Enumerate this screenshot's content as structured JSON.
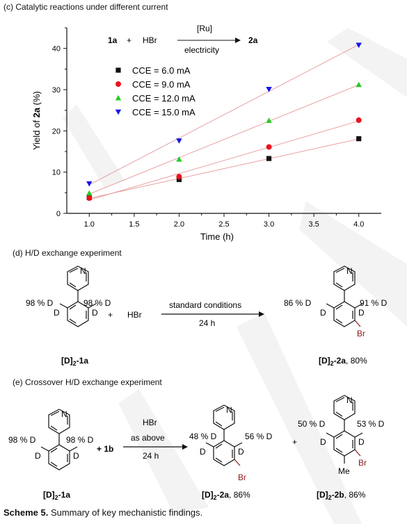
{
  "panels": {
    "c": {
      "title": "(c) Catalytic reactions under different current"
    },
    "d": {
      "title": "(d) H/D exchange experiment",
      "pct_left": "98 % D",
      "pct_right": "98 % D",
      "plus": "+",
      "reagent": "HBr",
      "conditions": "standard conditions",
      "time": "24 h",
      "prod_pct_left": "86 % D",
      "prod_pct_right": "91 % D",
      "label_sm_prefix": "[D]",
      "label_sm_sub": "2",
      "label_sm_suffix": "-1a",
      "label_prod_prefix": "[D]",
      "label_prod_sub": "2",
      "label_prod_suffix": "-2a",
      "label_prod_yield": ", 80%"
    },
    "e": {
      "title": "(e) Crossover H/D exchange experiment",
      "pct_left": "98 % D",
      "pct_right": "98 % D",
      "plus_1b": "+ 1b",
      "reagent": "HBr",
      "conditions": "as above",
      "time": "24 h",
      "p1_pct_left": "48 % D",
      "p1_pct_right": "56 % D",
      "plus": "+",
      "p2_pct_left": "50 % D",
      "p2_pct_right": "53 % D",
      "me": "Me",
      "label_sm_prefix": "[D]",
      "label_sm_sub": "2",
      "label_sm_suffix": "-1a",
      "label_p1_prefix": "[D]",
      "label_p1_sub": "2",
      "label_p1_suffix": "-2a",
      "label_p1_yield": ", 86%",
      "label_p2_prefix": "[D]",
      "label_p2_sub": "2",
      "label_p2_suffix": "-2b",
      "label_p2_yield": ", 86%"
    }
  },
  "atoms": {
    "N": "N",
    "D": "D",
    "Br": "Br"
  },
  "scheme_inset": {
    "reactant": "1a",
    "plus": "+",
    "reagent": "HBr",
    "catalyst": "[Ru]",
    "below": "electricity",
    "product": "2a"
  },
  "caption": {
    "bold": "Scheme 5.",
    "text": " Summary of key mechanistic findings."
  },
  "chart_data": {
    "type": "scatter",
    "title": "",
    "xlabel": "Time (h)",
    "ylabel_prefix": "Yield of ",
    "ylabel_bold": "2a",
    "ylabel_suffix": " (%)",
    "xlim": [
      0.75,
      4.25
    ],
    "ylim": [
      0,
      45
    ],
    "x_ticks": [
      1.0,
      1.5,
      2.0,
      2.5,
      3.0,
      3.5,
      4.0
    ],
    "x_tick_labels": [
      "1.0",
      "1.5",
      "2.0",
      "2.5",
      "3.0",
      "3.5",
      "4.0"
    ],
    "y_ticks": [
      0,
      10,
      20,
      30,
      40
    ],
    "y_tick_labels": [
      "0",
      "10",
      "20",
      "30",
      "40"
    ],
    "legend_position": "top-left",
    "fit_line_color": "#e8a0a0",
    "series": [
      {
        "name": "CCE = 6.0 mA",
        "marker": "square",
        "color": "#111111",
        "x": [
          1.0,
          2.0,
          3.0,
          4.0
        ],
        "y": [
          3.8,
          8.2,
          13.3,
          18.1
        ]
      },
      {
        "name": "CCE = 9.0 mA",
        "marker": "circle",
        "color": "#e8141c",
        "x": [
          1.0,
          2.0,
          3.0,
          4.0
        ],
        "y": [
          3.7,
          8.9,
          16.1,
          22.6
        ]
      },
      {
        "name": "CCE = 12.0 mA",
        "marker": "triangle-up",
        "color": "#22cc22",
        "x": [
          1.0,
          2.0,
          3.0,
          4.0
        ],
        "y": [
          4.9,
          13.1,
          22.5,
          31.2
        ]
      },
      {
        "name": "CCE = 15.0 mA",
        "marker": "triangle-down",
        "color": "#1515e8",
        "x": [
          1.0,
          2.0,
          3.0,
          4.0
        ],
        "y": [
          7.2,
          17.6,
          30.1,
          40.8
        ]
      }
    ]
  }
}
